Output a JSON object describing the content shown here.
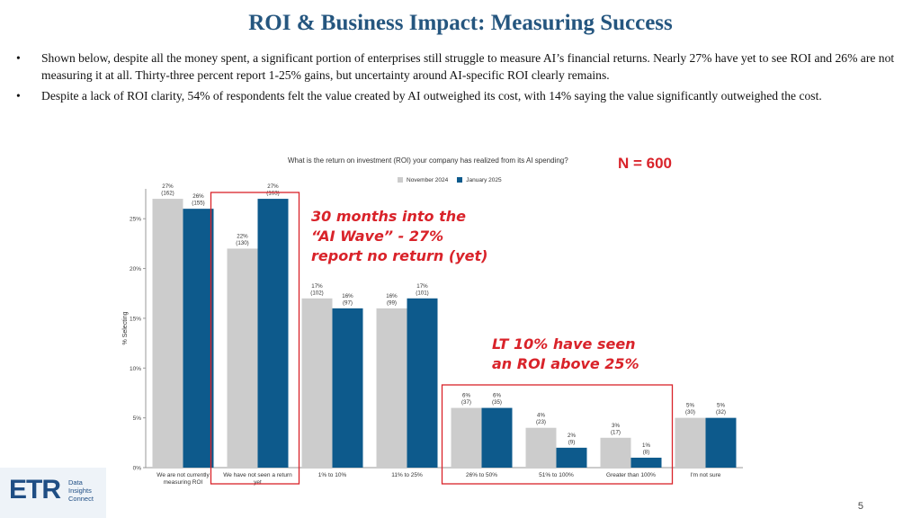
{
  "slide": {
    "title": "ROI & Business Impact: Measuring Success",
    "bullets": [
      "Shown below, despite all the money spent, a significant portion of enterprises still struggle to measure AI’s financial returns. Nearly 27% have yet to see ROI and 26% are not measuring it at all. Thirty-three percent report 1-25% gains, but uncertainty around AI-specific ROI clearly remains.",
      "Despite a lack of ROI clarity, 54% of respondents felt the value created by AI outweighed its cost, with 14% saying the value significantly outweighed the cost."
    ],
    "bullet_char": "•",
    "page_number": "5"
  },
  "chart_question": "What is the return on investment (ROI) your company has realized from its AI spending?",
  "sample_size": "N = 600",
  "annotations": {
    "no_return": [
      "30 months into the",
      "“AI Wave” - 27%",
      "report no return (yet)"
    ],
    "lt10": [
      "LT 10% have seen",
      "an ROI above 25%"
    ]
  },
  "logo": {
    "mark": "ETR",
    "lines": [
      "Data",
      "Insights",
      "Connect"
    ]
  },
  "colors": {
    "title": "#25567f",
    "nov2024": "#cccccc",
    "jan2025": "#0d5a8c",
    "annotation": "#d9232a"
  },
  "chart_data": {
    "type": "bar",
    "categories": [
      "We are not currently measuring ROI",
      "We have not seen a return yet",
      "1% to 10%",
      "11% to 25%",
      "26% to 50%",
      "51% to 100%",
      "Greater than 100%",
      "I'm not sure"
    ],
    "series": [
      {
        "name": "November 2024",
        "values": [
          27,
          22,
          17,
          16,
          6,
          4,
          3,
          5
        ],
        "labels": [
          "27%\n(162)",
          "22%\n(130)",
          "17%\n(102)",
          "16%\n(99)",
          "6%\n(37)",
          "4%\n(23)",
          "3%\n(17)",
          "5%\n(30)"
        ]
      },
      {
        "name": "January 2025",
        "values": [
          26,
          27,
          16,
          17,
          6,
          2,
          1,
          5
        ],
        "labels": [
          "26%\n(155)",
          "27%\n(163)",
          "16%\n(97)",
          "17%\n(101)",
          "6%\n(35)",
          "2%\n(9)",
          "1%\n(8)",
          "5%\n(32)"
        ]
      }
    ],
    "ylabel": "% Selecting",
    "ylim": [
      0,
      28
    ],
    "yticks": [
      "0%",
      "5%",
      "10%",
      "15%",
      "20%",
      "25%"
    ],
    "grid": false,
    "legend": "top-center"
  }
}
